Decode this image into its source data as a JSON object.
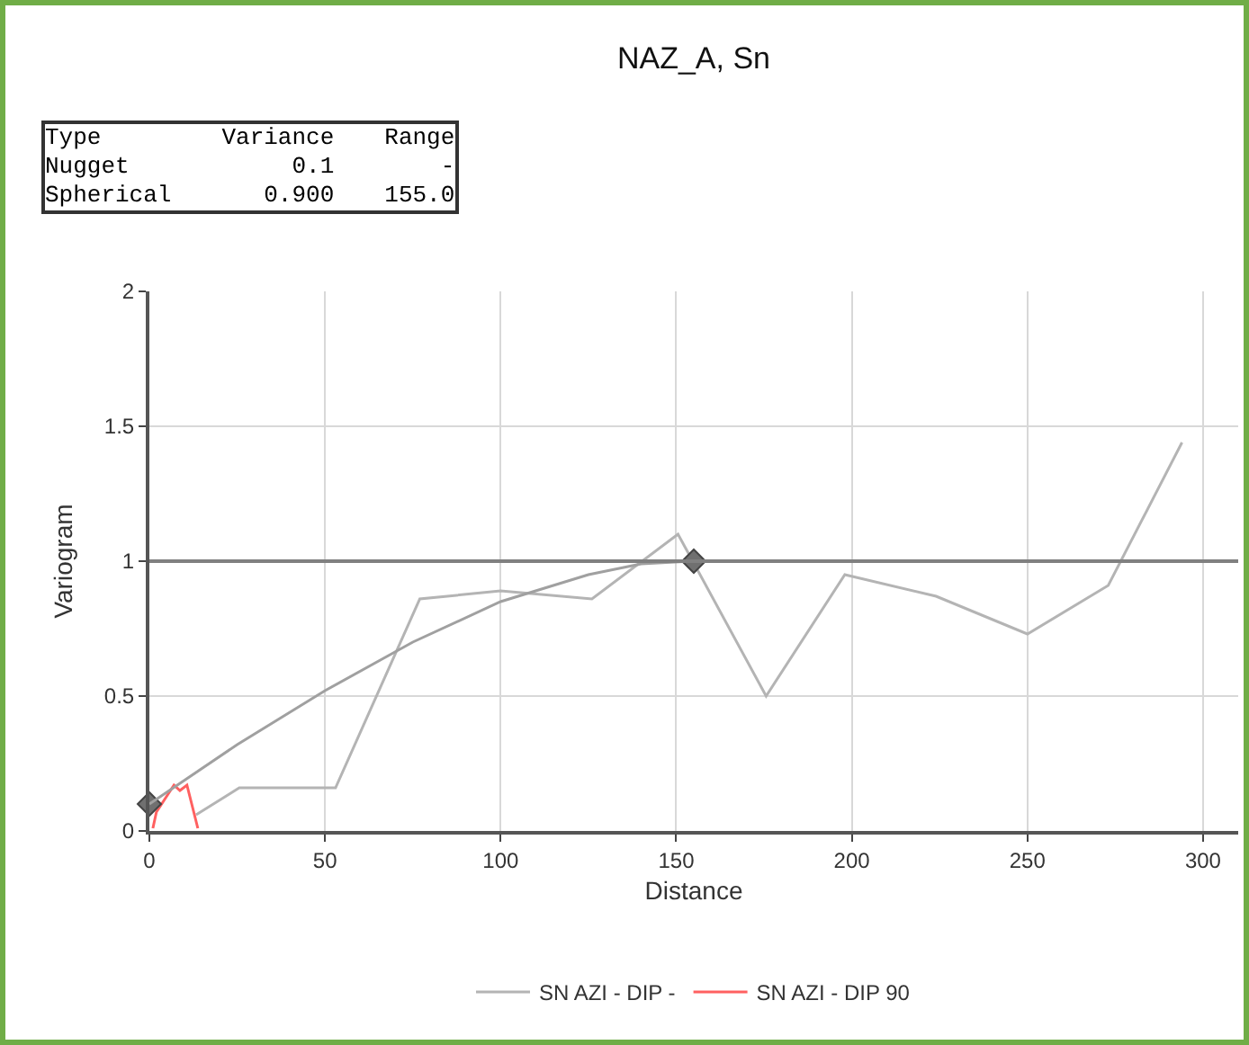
{
  "chart_data": {
    "type": "line",
    "title": "NAZ_A, Sn",
    "xlabel": "Distance",
    "ylabel": "Variogram",
    "annotations": [
      "Type\tVariance\tRange\nNugget\t0.1\t-\nSpherical\t0.900\t155.0"
    ],
    "xlim": [
      0,
      310
    ],
    "xticks": [
      0,
      50,
      100,
      150,
      200,
      250,
      300
    ],
    "ylim": [
      0,
      2
    ],
    "yticks": [
      0,
      0.5,
      1,
      1.5,
      2
    ],
    "grid": true,
    "legend": "bottom",
    "line_style": "solid",
    "marker": "none",
    "ref_lines": [
      {
        "axis": "y",
        "value": 1,
        "color": "#808080"
      }
    ],
    "series": [
      {
        "name": "SN AZI - DIP -",
        "color": "#b4b4b4",
        "x": [
          13.3,
          25.6,
          53,
          77,
          100,
          126,
          150.5,
          175.6,
          198,
          224,
          250,
          273,
          294
        ],
        "values": [
          0.06,
          0.16,
          0.16,
          0.86,
          0.89,
          0.86,
          1.1,
          0.5,
          0.95,
          0.87,
          0.73,
          0.91,
          1.44
        ]
      },
      {
        "name": "SN AZI - DIP 90",
        "color": "#ff6060",
        "x": [
          1,
          2,
          7,
          8.7,
          10.7,
          13.8
        ],
        "values": [
          0.01,
          0.07,
          0.17,
          0.15,
          0.17,
          0.01
        ]
      },
      {
        "type": "scatter",
        "marker": "diamond",
        "color": "#707070",
        "x": [
          0,
          155
        ],
        "values": [
          0.1,
          1.0
        ]
      },
      {
        "color": "#a0a0a0",
        "x": [
          0,
          25,
          50,
          75,
          100,
          125,
          140,
          155
        ],
        "values": [
          0.1,
          0.32,
          0.52,
          0.7,
          0.85,
          0.95,
          0.99,
          1.0
        ]
      }
    ]
  }
}
